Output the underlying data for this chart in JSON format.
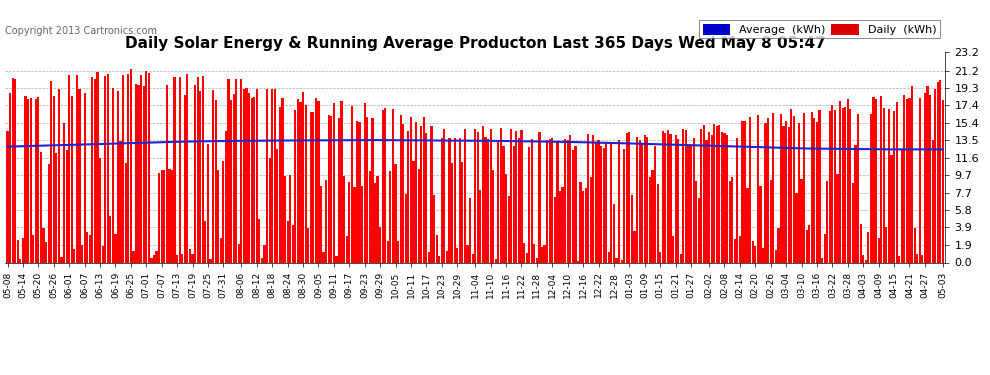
{
  "title": "Daily Solar Energy & Running Average Producton Last 365 Days Wed May 8 05:47",
  "copyright": "Copyright 2013 Cartronics.com",
  "ylim": [
    0.0,
    23.2
  ],
  "yticks": [
    0.0,
    1.9,
    3.9,
    5.8,
    7.7,
    9.7,
    11.6,
    13.5,
    15.4,
    17.4,
    19.3,
    21.2,
    23.2
  ],
  "bar_color": "#ff0000",
  "line_color": "#2222cc",
  "background_color": "#ffffff",
  "grid_color": "#999999",
  "title_fontsize": 11,
  "legend_avg_color": "#0000cc",
  "legend_daily_color": "#dd0000",
  "x_labels": [
    "05-08",
    "05-14",
    "05-20",
    "05-26",
    "06-01",
    "06-07",
    "06-13",
    "06-19",
    "06-25",
    "07-01",
    "07-07",
    "07-13",
    "07-19",
    "07-25",
    "07-31",
    "08-06",
    "08-12",
    "08-18",
    "08-24",
    "08-30",
    "09-05",
    "09-11",
    "09-17",
    "09-23",
    "09-29",
    "10-05",
    "10-11",
    "10-17",
    "10-23",
    "10-29",
    "11-04",
    "11-10",
    "11-16",
    "11-22",
    "11-28",
    "12-04",
    "12-10",
    "12-16",
    "12-22",
    "12-28",
    "01-03",
    "01-09",
    "01-15",
    "01-21",
    "01-27",
    "02-02",
    "02-08",
    "02-14",
    "02-20",
    "02-26",
    "03-04",
    "03-10",
    "03-16",
    "03-22",
    "03-28",
    "04-03",
    "04-09",
    "04-15",
    "04-21",
    "04-27",
    "05-03"
  ],
  "num_days": 365,
  "seed": 42,
  "avg_line": [
    12.8,
    12.85,
    12.9,
    12.95,
    13.0,
    13.05,
    13.1,
    13.15,
    13.2,
    13.25,
    13.3,
    13.35,
    13.38,
    13.4,
    13.42,
    13.44,
    13.46,
    13.47,
    13.48,
    13.49,
    13.5,
    13.51,
    13.52,
    13.53,
    13.52,
    13.51,
    13.5,
    13.49,
    13.48,
    13.47,
    13.46,
    13.44,
    13.42,
    13.4,
    13.38,
    13.35,
    13.32,
    13.28,
    13.24,
    13.2,
    13.15,
    13.1,
    13.05,
    13.0,
    12.95,
    12.9,
    12.85,
    12.8,
    12.75,
    12.7,
    12.65,
    12.6,
    12.58,
    12.56,
    12.54,
    12.52,
    12.5,
    12.5,
    12.5,
    12.5,
    12.5
  ]
}
